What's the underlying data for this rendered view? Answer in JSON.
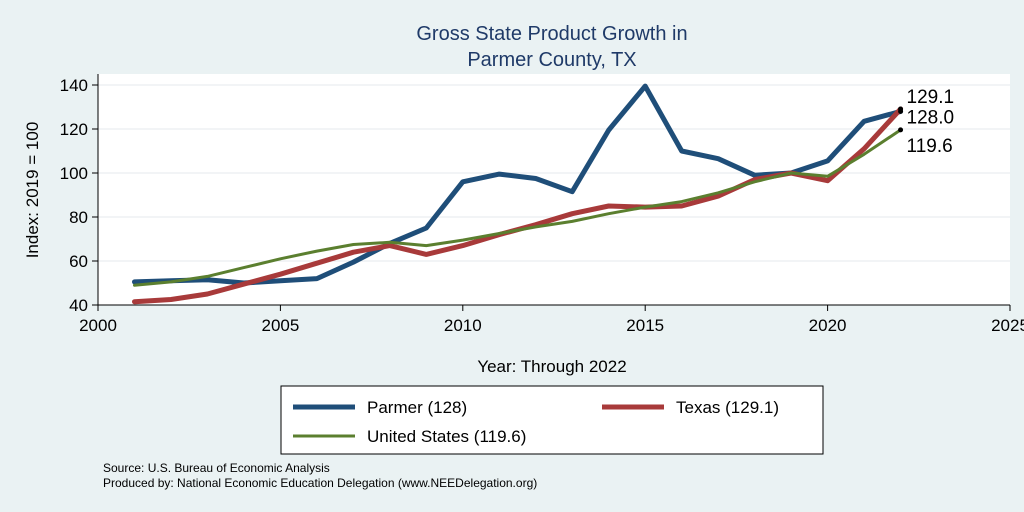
{
  "chart_data": {
    "type": "line",
    "title": [
      "Gross State Product Growth in",
      "Parmer County, TX"
    ],
    "xlabel": "Year: Through 2022",
    "ylabel": "Index: 2019 = 100",
    "xlim": [
      2000,
      2025
    ],
    "ylim": [
      40,
      145
    ],
    "xticks": [
      2000,
      2005,
      2010,
      2015,
      2020,
      2025
    ],
    "yticks": [
      40,
      60,
      80,
      100,
      120,
      140
    ],
    "grid": true,
    "x": [
      2001,
      2002,
      2003,
      2004,
      2005,
      2006,
      2007,
      2008,
      2009,
      2010,
      2011,
      2012,
      2013,
      2014,
      2015,
      2016,
      2017,
      2018,
      2019,
      2020,
      2021,
      2022
    ],
    "series": [
      {
        "name": "Parmer",
        "legend": "Parmer  (128)",
        "end_label": "128.0",
        "color": "#1f4e79",
        "values": [
          50.5,
          51,
          51.5,
          50,
          51,
          52,
          59.5,
          68,
          75,
          96,
          99.5,
          97.5,
          91.5,
          119.5,
          139.5,
          110,
          106.5,
          99,
          100,
          105.5,
          123.5,
          128
        ]
      },
      {
        "name": "Texas",
        "legend": "Texas (129.1)",
        "end_label": "129.1",
        "color": "#a83a3a",
        "values": [
          41.5,
          42.5,
          45,
          49.5,
          54,
          59,
          64,
          67,
          63,
          67,
          72,
          76.5,
          81.5,
          85,
          84.5,
          85,
          89.5,
          97,
          100,
          96.5,
          111,
          129.1
        ]
      },
      {
        "name": "United States",
        "legend": "United States (119.6)",
        "end_label": "119.6",
        "color": "#5b7f2f",
        "values": [
          49,
          50.5,
          53,
          57,
          61,
          64.5,
          67.5,
          68.5,
          67,
          69.5,
          72.5,
          75.5,
          78,
          81.5,
          84.5,
          87,
          91,
          96,
          100,
          98.5,
          108.5,
          119.6
        ]
      }
    ],
    "legend_position": "bottom",
    "notes": [
      "Source: U.S. Bureau of Economic Analysis",
      "Produced by: National Economic Education Delegation (www.NEEDelegation.org)"
    ]
  }
}
